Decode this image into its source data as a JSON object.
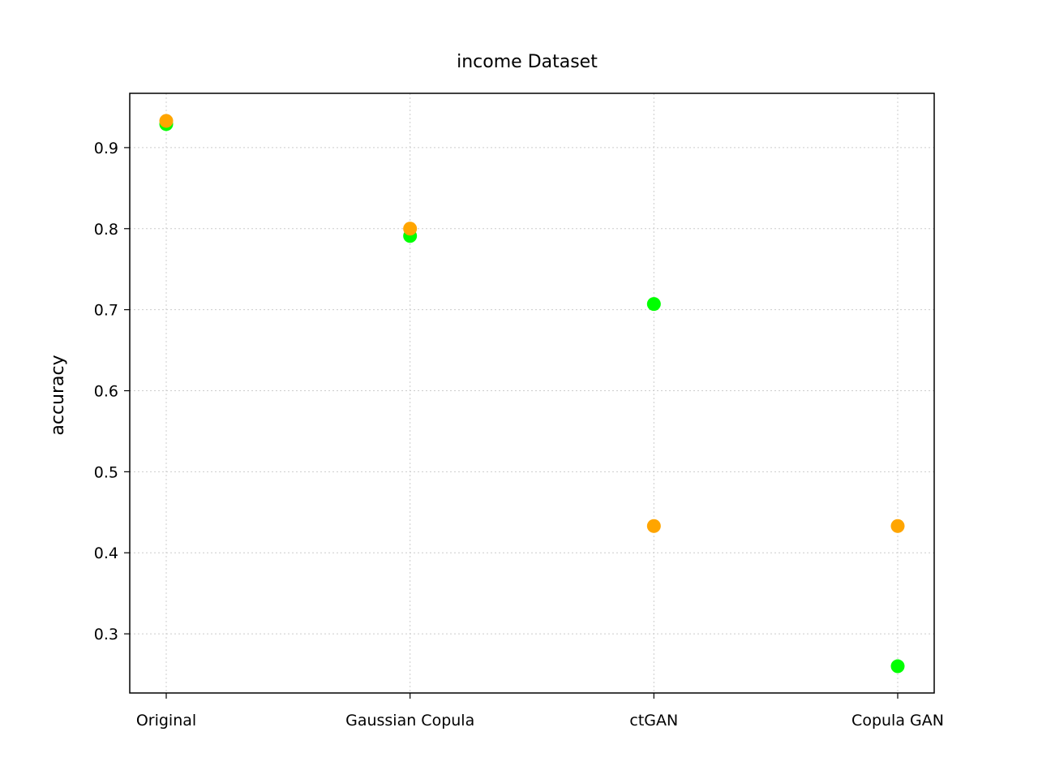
{
  "chart_data": {
    "type": "scatter",
    "title": "income Dataset",
    "xlabel": "",
    "ylabel": "accuracy",
    "categories": [
      "Original",
      "Gaussian Copula",
      "ctGAN",
      "Copula GAN"
    ],
    "ylim": [
      0.227,
      0.967
    ],
    "yticks": [
      0.3,
      0.4,
      0.5,
      0.6,
      0.7,
      0.8,
      0.9
    ],
    "grid": true,
    "series": [
      {
        "color": "#00ff00",
        "values": [
          0.929,
          0.791,
          0.707,
          0.26
        ]
      },
      {
        "color": "#ffa500",
        "values": [
          0.933,
          0.8,
          0.433,
          0.433
        ]
      }
    ]
  }
}
